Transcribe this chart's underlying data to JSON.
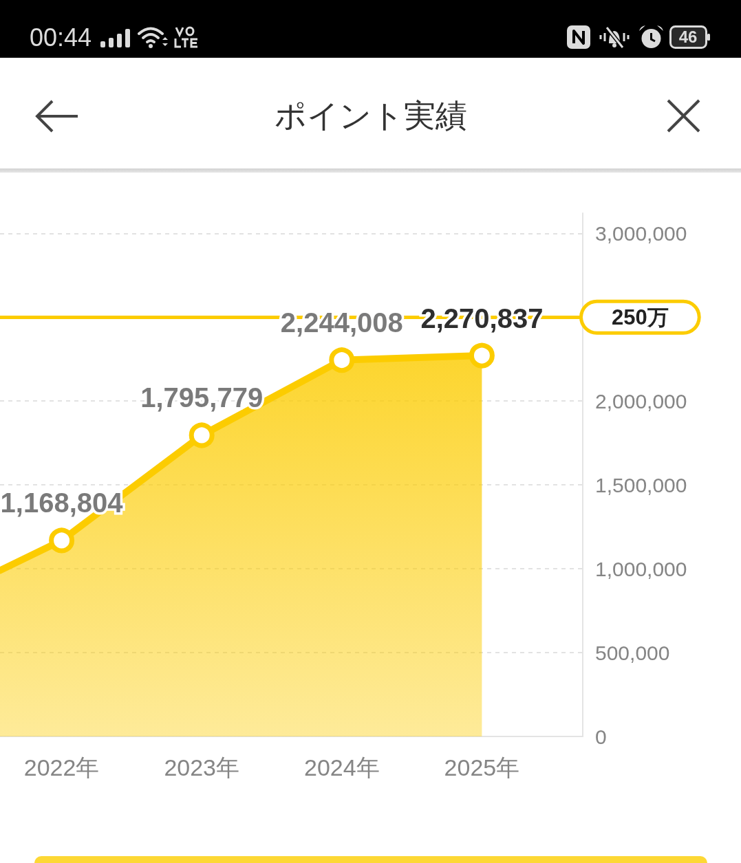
{
  "chart_data": {
    "type": "area",
    "title": "ポイント実績",
    "x": [
      2021.56,
      2022,
      2023,
      2024,
      2025
    ],
    "values": [
      990000,
      1168804,
      1795779,
      2244008,
      2270837
    ],
    "value_labels": [
      null,
      "1,168,804",
      "1,795,779",
      "2,244,008",
      "2,270,837"
    ],
    "color": "#fccc00",
    "xlim": [
      2021.56,
      2025.72
    ],
    "xticks": [
      {
        "value": 2022,
        "label": "2022年"
      },
      {
        "value": 2023,
        "label": "2023年"
      },
      {
        "value": 2024,
        "label": "2024年"
      },
      {
        "value": 2025,
        "label": "2025年"
      }
    ],
    "ylim": [
      0,
      3120000
    ],
    "yticks": [
      0,
      {
        "value": 500000,
        "label": "500,000"
      },
      {
        "value": 1000000,
        "label": "1,000,000"
      },
      {
        "value": 1500000,
        "label": "1,500,000"
      },
      {
        "value": 2000000,
        "label": "2,000,000"
      },
      {
        "value": 3000000,
        "label": "3,000,000"
      }
    ],
    "grid": "y",
    "marker": "circle",
    "line_style": "solid",
    "ref_lines": [
      {
        "axis": "y",
        "value": 2500000,
        "label": "250万",
        "color": "#fccc00",
        "line_style": "solid"
      }
    ],
    "annotations": [
      "00:44",
      "46"
    ]
  }
}
